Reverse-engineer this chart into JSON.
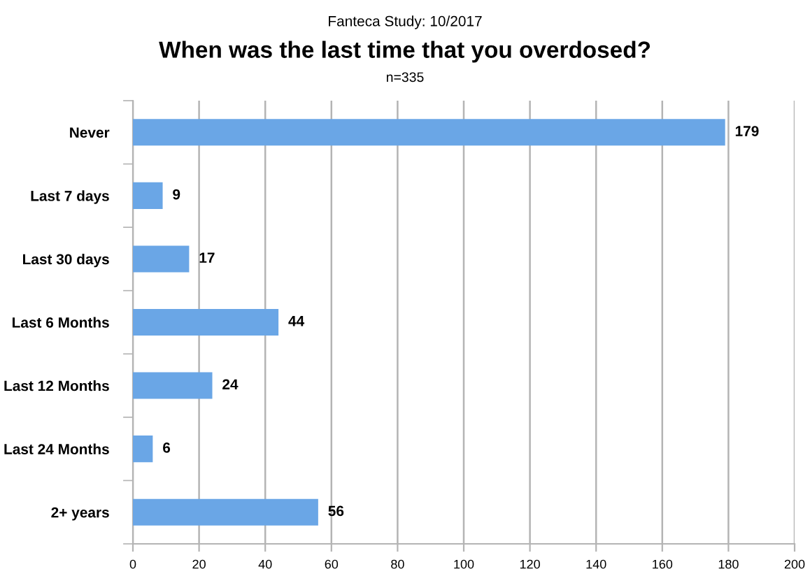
{
  "chart_data": {
    "type": "bar",
    "orientation": "horizontal",
    "subtitle": "Fanteca Study: 10/2017",
    "title": "When was the last time that you overdosed?",
    "annotations": [
      "n=335"
    ],
    "categories": [
      "Never",
      "Last 7 days",
      "Last 30 days",
      "Last 6 Months",
      "Last 12 Months",
      "Last 24 Months",
      "2+ years"
    ],
    "values": [
      179,
      9,
      17,
      44,
      24,
      6,
      56
    ],
    "color": "#6aa6e6",
    "data_labels": true,
    "xlim": [
      0,
      200
    ],
    "xticks": [
      0,
      20,
      40,
      60,
      80,
      100,
      120,
      140,
      160,
      180,
      200
    ],
    "grid": "x",
    "legend": false
  }
}
